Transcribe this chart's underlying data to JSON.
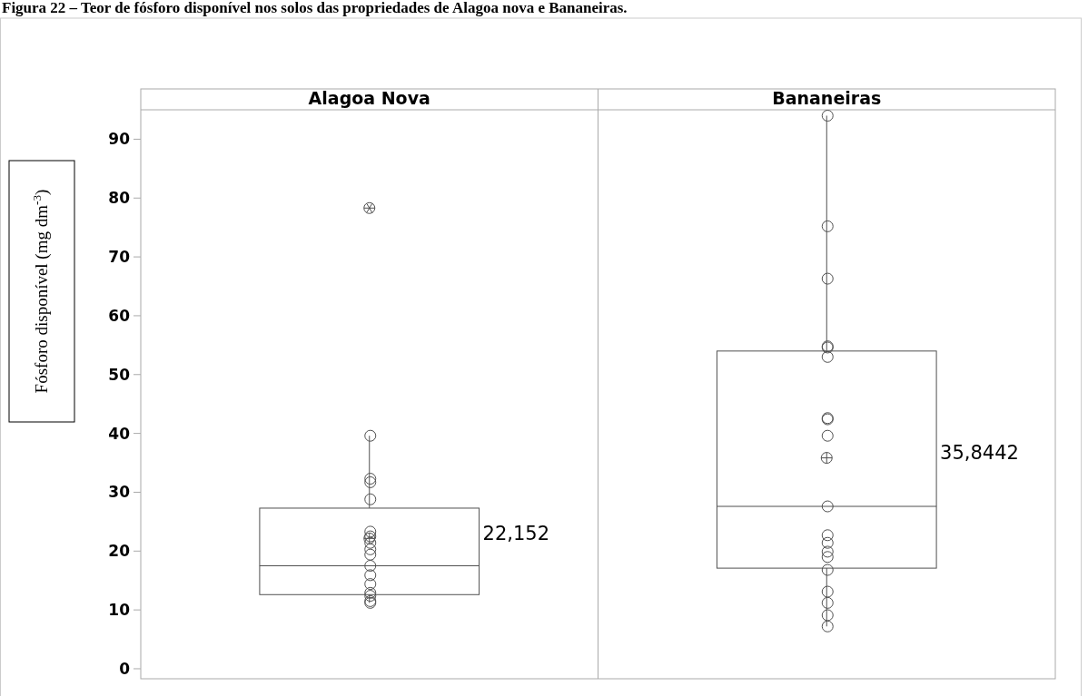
{
  "chart_data": {
    "type": "box",
    "title": "Figura 22 – Teor de fósforo disponível nos solos das propriedades de Alagoa nova e Bananeiras.",
    "ylabel": "Fósforo disponível (mg dm$^{-3}$)",
    "categories": [
      "Alagoa Nova",
      "Bananeiras"
    ],
    "ylim": [
      -1.7,
      95
    ],
    "yticks": [
      0,
      10,
      20,
      30,
      40,
      50,
      60,
      70,
      80,
      90
    ],
    "grid": false,
    "series": [
      {
        "color": "#505050",
        "boxes": [
          {
            "low": 11.2,
            "q1": 12.6,
            "median": 17.5,
            "q3": 27.3,
            "high": 39.6,
            "mean": 22.152,
            "outliers": [
              78.3
            ]
          },
          {
            "low": 7.2,
            "q1": 17.1,
            "median": 27.6,
            "q3": 54.0,
            "high": 94.0,
            "mean": 35.8442
          }
        ]
      },
      {
        "type": "scatter",
        "color": "#505050",
        "marker": "circle",
        "x": [
          "Alagoa Nova",
          "Alagoa Nova",
          "Alagoa Nova",
          "Alagoa Nova",
          "Alagoa Nova",
          "Alagoa Nova",
          "Alagoa Nova",
          "Alagoa Nova",
          "Alagoa Nova",
          "Alagoa Nova",
          "Alagoa Nova",
          "Alagoa Nova",
          "Alagoa Nova",
          "Alagoa Nova",
          "Alagoa Nova",
          "Alagoa Nova",
          "Bananeiras",
          "Bananeiras",
          "Bananeiras",
          "Bananeiras",
          "Bananeiras",
          "Bananeiras",
          "Bananeiras",
          "Bananeiras",
          "Bananeiras",
          "Bananeiras",
          "Bananeiras",
          "Bananeiras",
          "Bananeiras",
          "Bananeiras",
          "Bananeiras",
          "Bananeiras",
          "Bananeiras",
          "Bananeiras",
          "Bananeiras"
        ],
        "values": [
          39.6,
          32.3,
          31.7,
          28.8,
          23.3,
          22.5,
          21.4,
          20.3,
          19.4,
          15.9,
          14.4,
          12.9,
          12.4,
          11.5,
          11.2,
          17.5,
          94.0,
          75.2,
          66.3,
          54.8,
          54.6,
          53.0,
          42.6,
          42.4,
          39.6,
          27.6,
          22.7,
          21.4,
          19.9,
          19.0,
          16.8,
          13.1,
          11.2,
          9.1,
          7.2
        ]
      }
    ],
    "annotations": [
      "22,152",
      "35,8442"
    ]
  }
}
